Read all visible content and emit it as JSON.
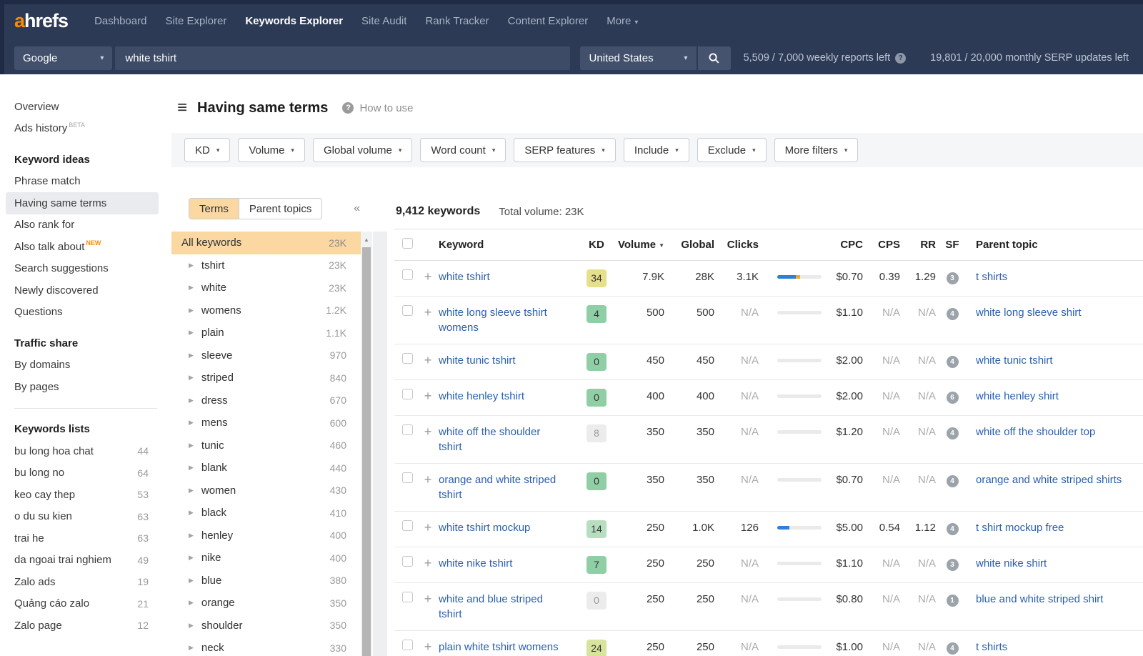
{
  "icons": {
    "plus": "+",
    "caret_down": "▾",
    "sort_desc": "▼",
    "triangle_right": "▶",
    "collapse": "«",
    "scroll_up": "▲",
    "hamburger": "≡",
    "help": "?"
  },
  "colors": {
    "accent_orange": "#ff8800",
    "nav_bg": "#2d3a55",
    "link_blue": "#2a5fad",
    "kd_yellow": "#e7e08a",
    "kd_green": "#90cfa5",
    "kd_light_green": "#b7dec1",
    "kd_yellow_green": "#d8e49e",
    "kd_gray": "#ececec",
    "bar_blue": "#2f80d0",
    "bar_orange": "#f5a733",
    "terms_highlight": "#fbd7a1"
  },
  "nav": {
    "logo_a": "a",
    "logo_rest": "hrefs",
    "items": [
      {
        "label": "Dashboard"
      },
      {
        "label": "Site Explorer"
      },
      {
        "label": "Keywords Explorer",
        "active": true
      },
      {
        "label": "Site Audit"
      },
      {
        "label": "Rank Tracker"
      },
      {
        "label": "Content Explorer"
      },
      {
        "label": "More",
        "caret": true
      }
    ]
  },
  "search": {
    "engine": "Google",
    "query": "white tshirt",
    "country": "United States",
    "weekly": "5,509 / 7,000 weekly reports left",
    "monthly": "19,801 / 20,000 monthly SERP updates left"
  },
  "sidebar": {
    "groups": [
      {
        "items": [
          {
            "label": "Overview"
          },
          {
            "label": "Ads history",
            "sup": "BETA",
            "sup_style": "beta"
          }
        ]
      },
      {
        "heading": "Keyword ideas",
        "items": [
          {
            "label": "Phrase match"
          },
          {
            "label": "Having same terms",
            "selected": true
          },
          {
            "label": "Also rank for"
          },
          {
            "label": "Also talk about",
            "sup": "NEW",
            "sup_style": "new"
          },
          {
            "label": "Search suggestions"
          },
          {
            "label": "Newly discovered"
          },
          {
            "label": "Questions"
          }
        ]
      },
      {
        "heading": "Traffic share",
        "divider_after": true,
        "items": [
          {
            "label": "By domains"
          },
          {
            "label": "By pages"
          }
        ]
      },
      {
        "heading": "Keywords lists",
        "items": [
          {
            "label": "bu long hoa chat",
            "count": "44"
          },
          {
            "label": "bu long no",
            "count": "64"
          },
          {
            "label": "keo cay thep",
            "count": "53"
          },
          {
            "label": "o du su kien",
            "count": "63"
          },
          {
            "label": "trai he",
            "count": "63"
          },
          {
            "label": "da ngoai trai nghiem",
            "count": "49"
          },
          {
            "label": "Zalo ads",
            "count": "19"
          },
          {
            "label": "Quảng cáo zalo",
            "count": "21"
          },
          {
            "label": "Zalo page",
            "count": "12"
          }
        ]
      }
    ]
  },
  "header": {
    "title": "Having same terms",
    "help": "How to use"
  },
  "filters": [
    "KD",
    "Volume",
    "Global volume",
    "Word count",
    "SERP features",
    "Include",
    "Exclude",
    "More filters"
  ],
  "terms": {
    "tabs": [
      "Terms",
      "Parent topics"
    ],
    "all": {
      "label": "All keywords",
      "count": "23K"
    },
    "items": [
      {
        "label": "tshirt",
        "count": "23K"
      },
      {
        "label": "white",
        "count": "23K"
      },
      {
        "label": "womens",
        "count": "1.2K"
      },
      {
        "label": "plain",
        "count": "1.1K"
      },
      {
        "label": "sleeve",
        "count": "970"
      },
      {
        "label": "striped",
        "count": "840"
      },
      {
        "label": "dress",
        "count": "670"
      },
      {
        "label": "mens",
        "count": "600"
      },
      {
        "label": "tunic",
        "count": "460"
      },
      {
        "label": "blank",
        "count": "440"
      },
      {
        "label": "women",
        "count": "430"
      },
      {
        "label": "black",
        "count": "410"
      },
      {
        "label": "henley",
        "count": "400"
      },
      {
        "label": "nike",
        "count": "400"
      },
      {
        "label": "blue",
        "count": "380"
      },
      {
        "label": "orange",
        "count": "350"
      },
      {
        "label": "shoulder",
        "count": "350"
      },
      {
        "label": "neck",
        "count": "330"
      }
    ]
  },
  "table": {
    "count": "9,412 keywords",
    "total": "Total volume: 23K",
    "columns": [
      "Keyword",
      "KD",
      "Volume",
      "Global",
      "Clicks",
      "CPC",
      "CPS",
      "RR",
      "SF",
      "Parent topic"
    ],
    "rows": [
      {
        "keyword": "white tshirt",
        "kd": "34",
        "kd_color": "yellow",
        "volume": "7.9K",
        "global": "28K",
        "clicks": "3.1K",
        "bar": {
          "blue": 42,
          "orange": 10
        },
        "cpc": "$0.70",
        "cps": "0.39",
        "rr": "1.29",
        "sf": "3",
        "parent": "t shirts"
      },
      {
        "keyword": "white long sleeve tshirt womens",
        "kd": "4",
        "kd_color": "green",
        "volume": "500",
        "global": "500",
        "clicks": "N/A",
        "cpc": "$1.10",
        "cps": "N/A",
        "rr": "N/A",
        "sf": "4",
        "parent": "white long sleeve shirt"
      },
      {
        "keyword": "white tunic tshirt",
        "kd": "0",
        "kd_color": "green",
        "volume": "450",
        "global": "450",
        "clicks": "N/A",
        "cpc": "$2.00",
        "cps": "N/A",
        "rr": "N/A",
        "sf": "4",
        "parent": "white tunic tshirt"
      },
      {
        "keyword": "white henley tshirt",
        "kd": "0",
        "kd_color": "green",
        "volume": "400",
        "global": "400",
        "clicks": "N/A",
        "cpc": "$2.00",
        "cps": "N/A",
        "rr": "N/A",
        "sf": "6",
        "parent": "white henley shirt"
      },
      {
        "keyword": "white off the shoulder tshirt",
        "kd": "8",
        "kd_color": "gray",
        "volume": "350",
        "global": "350",
        "clicks": "N/A",
        "cpc": "$1.20",
        "cps": "N/A",
        "rr": "N/A",
        "sf": "4",
        "parent": "white off the shoulder top"
      },
      {
        "keyword": "orange and white striped tshirt",
        "kd": "0",
        "kd_color": "green",
        "volume": "350",
        "global": "350",
        "clicks": "N/A",
        "cpc": "$0.70",
        "cps": "N/A",
        "rr": "N/A",
        "sf": "4",
        "parent": "orange and white striped shirts"
      },
      {
        "keyword": "white tshirt mockup",
        "kd": "14",
        "kd_color": "light_green",
        "volume": "250",
        "global": "1.0K",
        "clicks": "126",
        "bar": {
          "blue": 27,
          "orange": 0
        },
        "cpc": "$5.00",
        "cps": "0.54",
        "rr": "1.12",
        "sf": "4",
        "parent": "t shirt mockup free"
      },
      {
        "keyword": "white nike tshirt",
        "kd": "7",
        "kd_color": "green",
        "volume": "250",
        "global": "250",
        "clicks": "N/A",
        "cpc": "$1.10",
        "cps": "N/A",
        "rr": "N/A",
        "sf": "3",
        "parent": "white nike shirt"
      },
      {
        "keyword": "white and blue striped tshirt",
        "kd": "0",
        "kd_color": "gray",
        "volume": "250",
        "global": "250",
        "clicks": "N/A",
        "cpc": "$0.80",
        "cps": "N/A",
        "rr": "N/A",
        "sf": "1",
        "parent": "blue and white striped shirt"
      },
      {
        "keyword": "plain white tshirt womens",
        "kd": "24",
        "kd_color": "yellow_green",
        "volume": "250",
        "global": "250",
        "clicks": "N/A",
        "cpc": "$1.00",
        "cps": "N/A",
        "rr": "N/A",
        "sf": "4",
        "parent": "t shirts"
      }
    ]
  }
}
